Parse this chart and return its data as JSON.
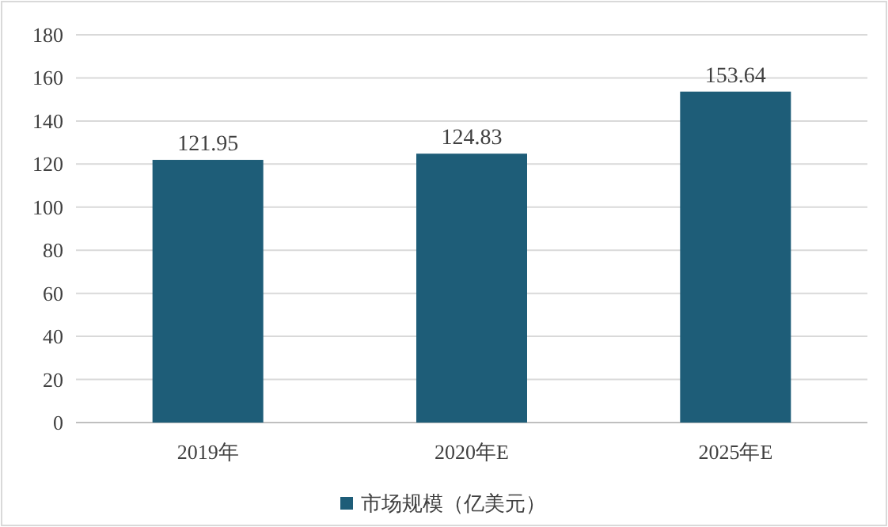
{
  "chart_data": {
    "type": "bar",
    "categories": [
      "2019年",
      "2020年E",
      "2025年E"
    ],
    "series": [
      {
        "name": "市场规模（亿美元）",
        "color": "#1e5d78",
        "values": [
          121.95,
          124.83,
          153.64
        ]
      }
    ],
    "ylim": [
      0,
      180
    ],
    "yticks": [
      0,
      20,
      40,
      60,
      80,
      100,
      120,
      140,
      160,
      180
    ],
    "grid": "y",
    "data_labels": true,
    "legend": "bottom"
  }
}
